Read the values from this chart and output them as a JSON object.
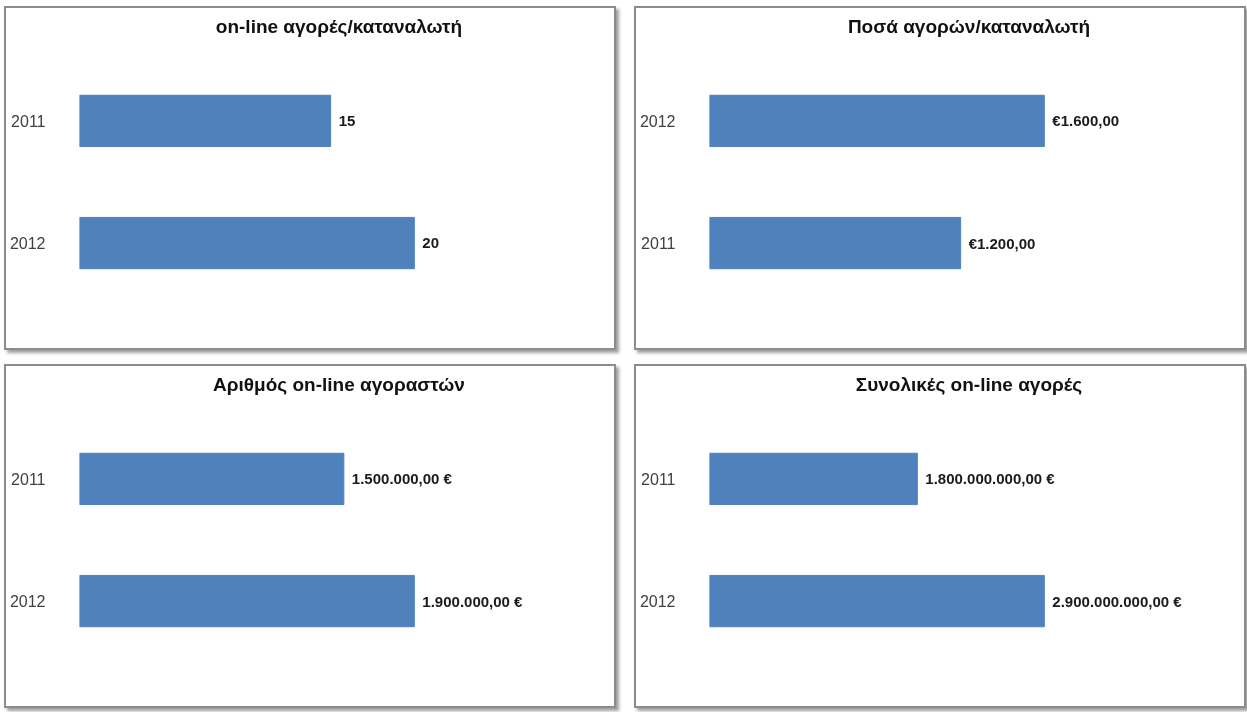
{
  "chart_data": [
    {
      "type": "bar",
      "orientation": "horizontal",
      "title": "on-line αγορές/καταναλωτή",
      "categories": [
        "2011",
        "2012"
      ],
      "values": [
        15,
        20
      ],
      "data_labels": true,
      "color": "#4f81bd",
      "tick_labels": "y"
    },
    {
      "type": "bar",
      "orientation": "horizontal",
      "title": "Ποσά αγορών/καταναλωτή",
      "categories": [
        "2012",
        "2011"
      ],
      "values": [
        1600,
        1200
      ],
      "value_labels": [
        "€1.600,00",
        "€1.200,00"
      ],
      "color": "#4f81bd",
      "tick_labels": "y"
    },
    {
      "type": "bar",
      "orientation": "horizontal",
      "title": "Αριθμός on-line αγοραστών",
      "categories": [
        "2011",
        "2012"
      ],
      "values": [
        1500000,
        1900000
      ],
      "value_labels": [
        "1.500.000,00 €",
        "1.900.000,00 €"
      ],
      "color": "#4f81bd",
      "tick_labels": "y"
    },
    {
      "type": "bar",
      "orientation": "horizontal",
      "title": "Συνολικές on-line αγορές",
      "categories": [
        "2011",
        "2012"
      ],
      "values": [
        1800000000,
        2900000000
      ],
      "value_labels": [
        "1.800.000.000,00 €",
        "2.900.000.000,00 €"
      ],
      "color": "#4f81bd",
      "tick_labels": "y"
    }
  ]
}
